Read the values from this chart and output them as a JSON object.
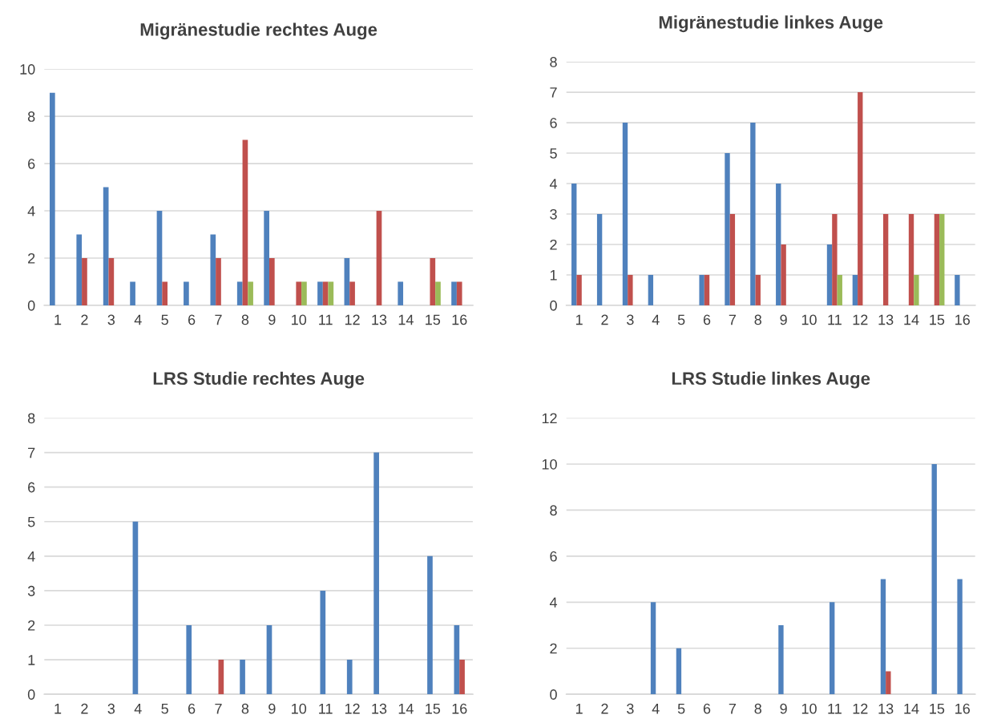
{
  "chart_data": [
    {
      "type": "bar",
      "title": "Migränestudie rechtes Auge",
      "categories": [
        "1",
        "2",
        "3",
        "4",
        "5",
        "6",
        "7",
        "8",
        "9",
        "10",
        "11",
        "12",
        "13",
        "14",
        "15",
        "16"
      ],
      "series": [
        {
          "color": "#4f81bd",
          "values": [
            9,
            3,
            5,
            1,
            4,
            1,
            3,
            1,
            4,
            0,
            1,
            2,
            0,
            1,
            0,
            1
          ]
        },
        {
          "color": "#c0504d",
          "values": [
            0,
            2,
            2,
            0,
            1,
            0,
            2,
            7,
            2,
            1,
            1,
            1,
            4,
            0,
            2,
            1
          ]
        },
        {
          "color": "#9bbb59",
          "values": [
            0,
            0,
            0,
            0,
            0,
            0,
            0,
            1,
            0,
            1,
            1,
            0,
            0,
            0,
            1,
            0
          ]
        }
      ],
      "ylim": [
        0,
        10
      ],
      "yticks": [
        0,
        2,
        4,
        6,
        8,
        10
      ],
      "grid": "y",
      "legend": false
    },
    {
      "type": "bar",
      "title": "Migränestudie linkes Auge",
      "categories": [
        "1",
        "2",
        "3",
        "4",
        "5",
        "6",
        "7",
        "8",
        "9",
        "10",
        "11",
        "12",
        "13",
        "14",
        "15",
        "16"
      ],
      "series": [
        {
          "color": "#4f81bd",
          "values": [
            4,
            3,
            6,
            1,
            0,
            1,
            5,
            6,
            4,
            0,
            2,
            1,
            0,
            0,
            0,
            1
          ]
        },
        {
          "color": "#c0504d",
          "values": [
            1,
            0,
            1,
            0,
            0,
            1,
            3,
            1,
            2,
            0,
            3,
            7,
            3,
            3,
            3,
            0
          ]
        },
        {
          "color": "#9bbb59",
          "values": [
            0,
            0,
            0,
            0,
            0,
            0,
            0,
            0,
            0,
            0,
            1,
            0,
            0,
            1,
            3,
            0
          ]
        }
      ],
      "ylim": [
        0,
        8
      ],
      "yticks": [
        0,
        1,
        2,
        3,
        4,
        5,
        6,
        7,
        8
      ],
      "grid": "y",
      "legend": false
    },
    {
      "type": "bar",
      "title": "LRS Studie rechtes Auge",
      "categories": [
        "1",
        "2",
        "3",
        "4",
        "5",
        "6",
        "7",
        "8",
        "9",
        "10",
        "11",
        "12",
        "13",
        "14",
        "15",
        "16"
      ],
      "series": [
        {
          "color": "#4f81bd",
          "values": [
            0,
            0,
            0,
            5,
            0,
            2,
            0,
            1,
            2,
            0,
            3,
            1,
            7,
            0,
            4,
            2
          ]
        },
        {
          "color": "#c0504d",
          "values": [
            0,
            0,
            0,
            0,
            0,
            0,
            1,
            0,
            0,
            0,
            0,
            0,
            0,
            0,
            0,
            1
          ]
        }
      ],
      "ylim": [
        0,
        8
      ],
      "yticks": [
        0,
        1,
        2,
        3,
        4,
        5,
        6,
        7,
        8
      ],
      "grid": "y",
      "legend": false
    },
    {
      "type": "bar",
      "title": "LRS Studie linkes Auge",
      "categories": [
        "1",
        "2",
        "3",
        "4",
        "5",
        "6",
        "7",
        "8",
        "9",
        "10",
        "11",
        "12",
        "13",
        "14",
        "15",
        "16"
      ],
      "series": [
        {
          "color": "#4f81bd",
          "values": [
            0,
            0,
            0,
            4,
            2,
            0,
            0,
            0,
            3,
            0,
            4,
            0,
            5,
            0,
            10,
            5
          ]
        },
        {
          "color": "#c0504d",
          "values": [
            0,
            0,
            0,
            0,
            0,
            0,
            0,
            0,
            0,
            0,
            0,
            0,
            1,
            0,
            0,
            0
          ]
        }
      ],
      "ylim": [
        0,
        12
      ],
      "yticks": [
        0,
        2,
        4,
        6,
        8,
        10,
        12
      ],
      "grid": "y",
      "legend": false
    }
  ]
}
